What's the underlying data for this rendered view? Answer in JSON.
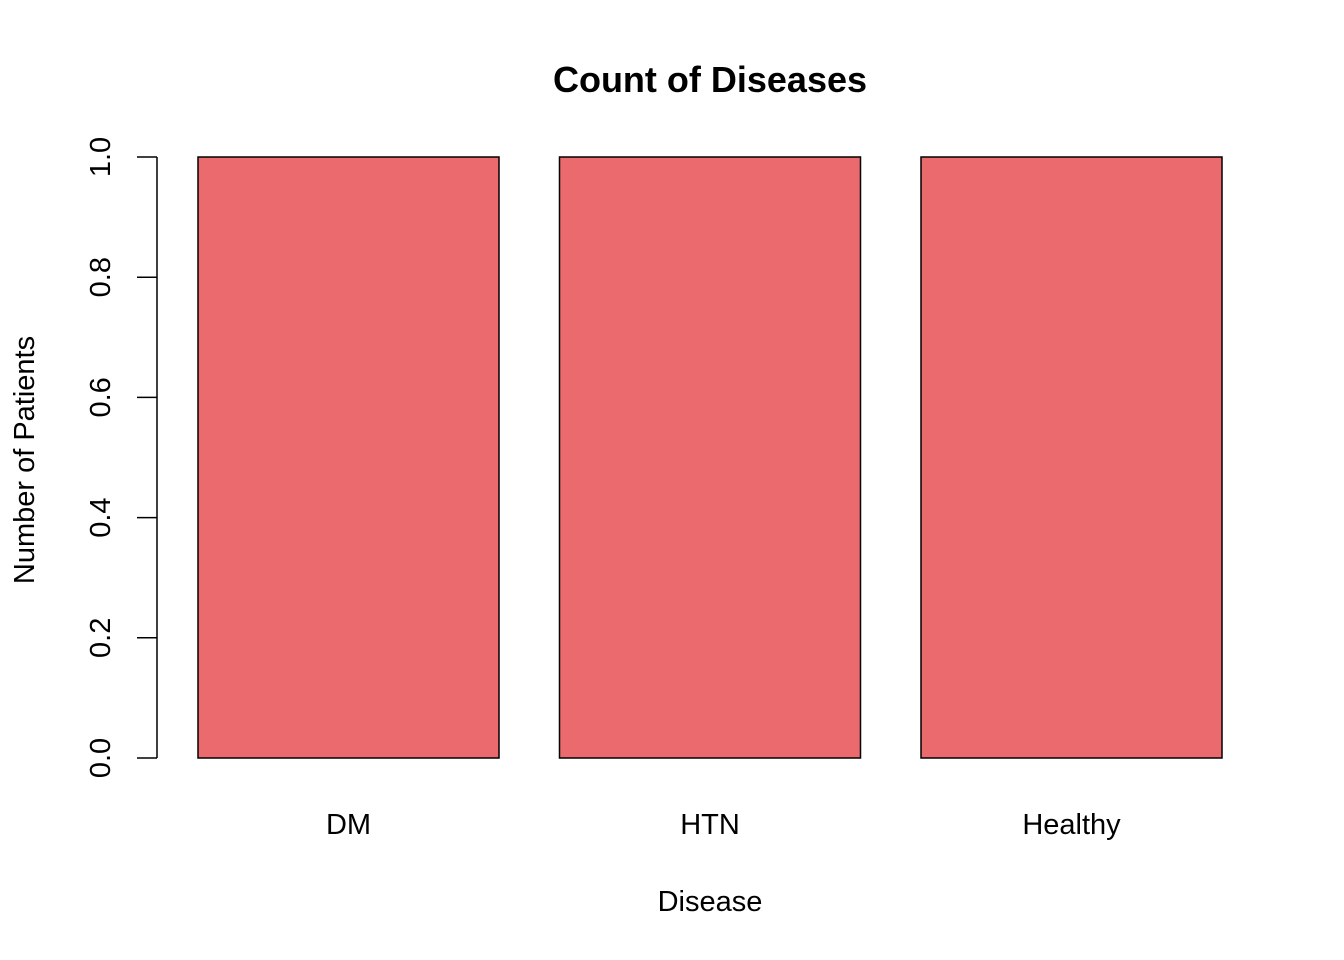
{
  "chart_data": {
    "type": "bar",
    "title": "Count of Diseases",
    "xlabel": "Disease",
    "ylabel": "Number of Patients",
    "categories": [
      "DM",
      "HTN",
      "Healthy"
    ],
    "values": [
      1,
      1,
      1
    ],
    "ylim": [
      0,
      1
    ],
    "yticks": [
      "0.0",
      "0.2",
      "0.4",
      "0.6",
      "0.8",
      "1.0"
    ],
    "bar_color": "#EA6A6D",
    "grid": false,
    "legend": "none"
  }
}
